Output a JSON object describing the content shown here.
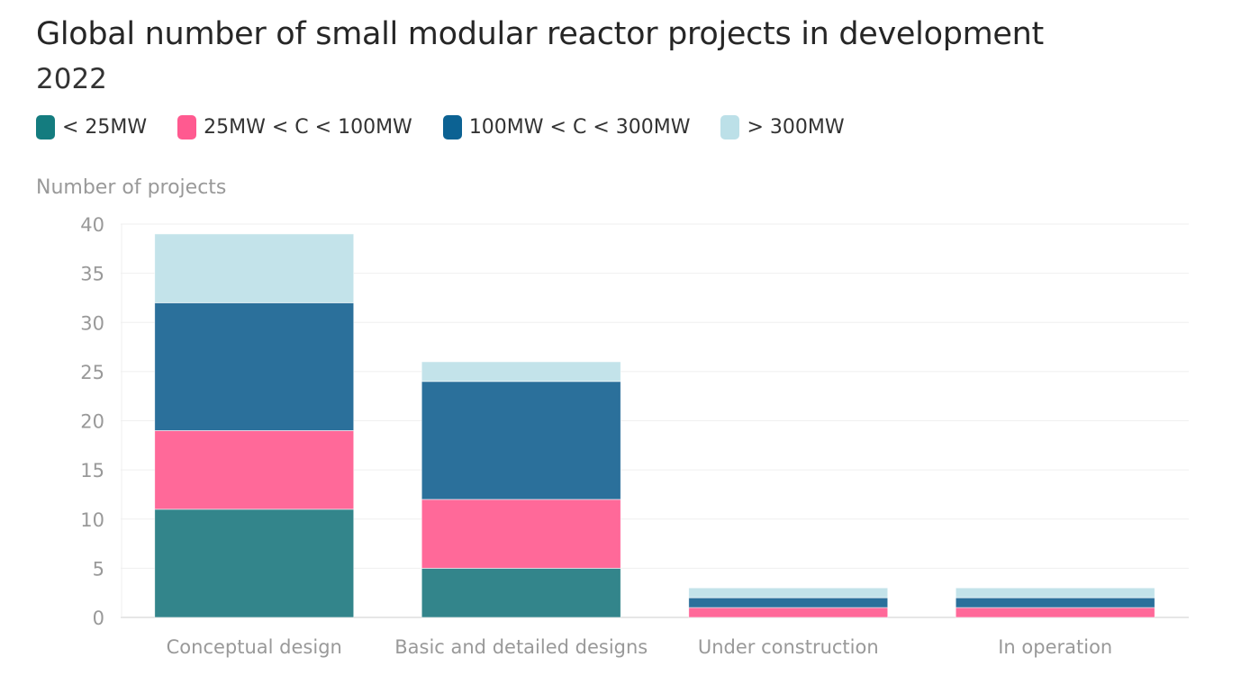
{
  "chart_data": {
    "type": "bar",
    "stacked": true,
    "title": "Global number of small modular reactor projects in development",
    "subtitle": "2022",
    "xlabel": "",
    "ylabel": "Number of projects",
    "ylim": [
      0,
      40
    ],
    "yticks": [
      0,
      5,
      10,
      15,
      20,
      25,
      30,
      35,
      40
    ],
    "grid": true,
    "legend_position": "top-left",
    "categories": [
      "Conceptual design",
      "Basic and detailed designs",
      "Under construction",
      "In operation"
    ],
    "series": [
      {
        "name": "< 25MW",
        "color": "#33858b",
        "legend_color": "#147c7f",
        "values": [
          11,
          5,
          0,
          0
        ]
      },
      {
        "name": "25MW < C < 100MW",
        "color": "#ff6999",
        "legend_color": "#ff5a90",
        "values": [
          8,
          7,
          1,
          1
        ]
      },
      {
        "name": "100MW < C < 300MW",
        "color": "#2b709b",
        "legend_color": "#0c6293",
        "values": [
          13,
          12,
          1,
          1
        ]
      },
      {
        "name": "> 300MW",
        "color": "#c3e3ea",
        "legend_color": "#bce0e8",
        "values": [
          7,
          2,
          1,
          1
        ]
      }
    ]
  }
}
